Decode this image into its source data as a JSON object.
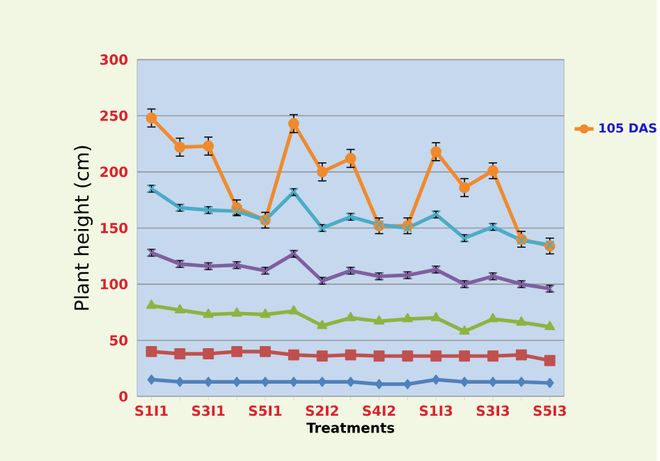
{
  "chart_data": {
    "type": "line",
    "xlabel": "Treatments",
    "ylabel": "Plant height (cm)",
    "categories": [
      "S1I1",
      null,
      "S3I1",
      null,
      "S5I1",
      null,
      "S2I2",
      null,
      "S4I2",
      null,
      "S1I3",
      null,
      "S3I3",
      null,
      "S5I3"
    ],
    "ylim": [
      0,
      300
    ],
    "yticks": [
      0,
      50,
      100,
      150,
      200,
      250,
      300
    ],
    "grid": "y",
    "legend": "right",
    "series": [
      {
        "name": "105 DAS",
        "color": "#f08a2c",
        "marker": "circle",
        "values": [
          248,
          222,
          223,
          168,
          157,
          243,
          200,
          212,
          152,
          152,
          218,
          186,
          201,
          140,
          134
        ],
        "errors": [
          8,
          8,
          8,
          7,
          7,
          8,
          8,
          8,
          7,
          7,
          8,
          8,
          7,
          7,
          7
        ]
      },
      {
        "color": "#4bacc6",
        "marker": "cross",
        "values": [
          185,
          168,
          166,
          165,
          157,
          182,
          150,
          160,
          153,
          150,
          162,
          141,
          151,
          139,
          135
        ],
        "errors": [
          3,
          3,
          3,
          3,
          null,
          3,
          3,
          3,
          null,
          null,
          3,
          3,
          3,
          null,
          null
        ]
      },
      {
        "color": "#7f5f9f",
        "marker": "cross",
        "values": [
          128,
          118,
          116,
          117,
          112,
          127,
          103,
          112,
          107,
          108,
          113,
          100,
          107,
          100,
          96
        ],
        "errors": [
          3,
          3,
          3,
          3,
          3,
          3,
          3,
          3,
          3,
          3,
          3,
          3,
          3,
          3,
          3
        ]
      },
      {
        "color": "#8db340",
        "marker": "triangle",
        "values": [
          81,
          77,
          73,
          74,
          73,
          76,
          63,
          70,
          67,
          69,
          70,
          58,
          69,
          66,
          62
        ]
      },
      {
        "color": "#c0504d",
        "marker": "square",
        "values": [
          40,
          38,
          38,
          40,
          40,
          37,
          36,
          37,
          36,
          36,
          36,
          36,
          36,
          37,
          32
        ]
      },
      {
        "color": "#4f81bd",
        "marker": "diamond",
        "values": [
          15,
          13,
          13,
          13,
          13,
          13,
          13,
          13,
          11,
          11,
          15,
          13,
          13,
          13,
          12
        ]
      }
    ]
  }
}
